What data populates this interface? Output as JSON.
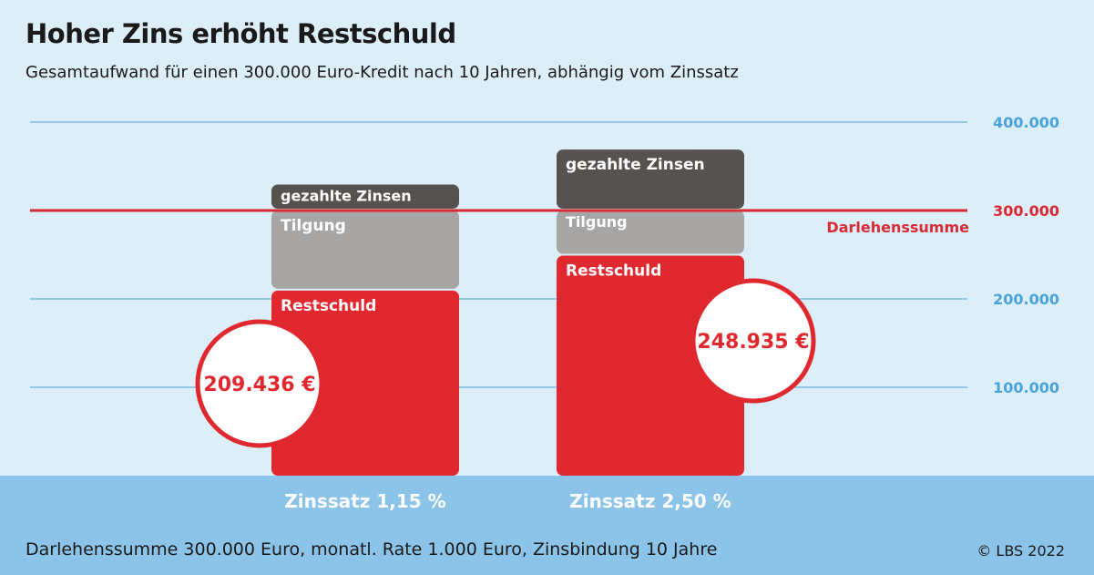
{
  "title": "Hoher Zins erhöht Restschuld",
  "subtitle": "Gesamtaufwand für einen 300.000 Euro-Kredit nach 10 Jahren, abhängig vom Zinssatz",
  "footnote": "Darlehenssumme 300.000 Euro, monatl. Rate 1.000 Euro, Zinsbindung 10 Jahre",
  "source": "© LBS 2022",
  "colors": {
    "restschuld": "#e0282f",
    "tilgung": "#a7a6a5",
    "zinsen": "#565250",
    "gridline": "#4aa3d9",
    "reference_line": "#d92a35",
    "background": "#dceef8",
    "footer": "#8cc3e8"
  },
  "chart_data": {
    "type": "bar",
    "stacked": true,
    "categories": [
      "Zinssatz 1,15 %",
      "Zinssatz 2,50 %"
    ],
    "series": [
      {
        "name": "Restschuld",
        "values": [
          209436,
          248935
        ]
      },
      {
        "name": "Tilgung",
        "values": [
          90564,
          51065
        ]
      },
      {
        "name": "gezahlte Zinsen",
        "values": [
          29436,
          68935
        ]
      }
    ],
    "highlight_labels": [
      "209.436 €",
      "248.935 €"
    ],
    "y_ticks": [
      100000,
      200000,
      300000,
      400000
    ],
    "y_tick_labels": [
      "100.000",
      "200.000",
      "300.000",
      "400.000"
    ],
    "ylim": [
      0,
      400000
    ],
    "reference_line": {
      "value": 300000,
      "label": "Darlehenssumme"
    },
    "grid": true,
    "y_axis_position": "right",
    "legend": "none"
  }
}
